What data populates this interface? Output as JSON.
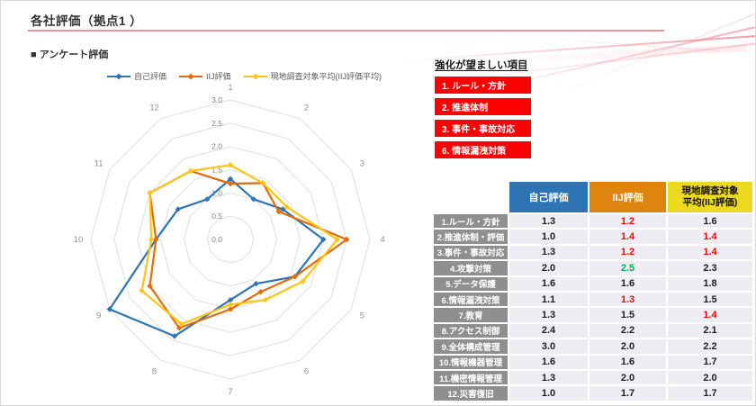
{
  "page": {
    "title": "各社評価（拠点1 ）",
    "section_label": "■ アンケート評価"
  },
  "palette": {
    "title-underline-pink": "#F0919E",
    "header-blue": "#2E74B5",
    "header-orange": "#DD850F",
    "header-yellow": "#EDD91F",
    "row-label-gray": "#8F8F8F",
    "cell-bg": "#EDEDF3",
    "value-red": "#FF0000",
    "value-green": "#00B050",
    "highlight-red": "#FE0000",
    "grid-gray": "#DEDEDE",
    "tick-gray": "#7F7F7F",
    "axis-label-gray": "#909090",
    "text-dark": "#333333"
  },
  "highlight": {
    "title": "強化が望ましい項目",
    "items": [
      "1. ルール・方針",
      "2. 推進体制",
      "3. 事件・事故対応",
      "6. 情報漏洩対策"
    ]
  },
  "table": {
    "columns": [
      "自己評価",
      "IIJ評価",
      "現地調査対象\n平均(IIJ評価)"
    ],
    "rows": [
      {
        "label": "1.ルール・方針",
        "values": [
          {
            "text": "1.3"
          },
          {
            "text": "1.2",
            "emphasis": "red"
          },
          {
            "text": "1.6"
          }
        ]
      },
      {
        "label": "2.推進体制・評価",
        "values": [
          {
            "text": "1.0"
          },
          {
            "text": "1.4",
            "emphasis": "red"
          },
          {
            "text": "1.4",
            "emphasis": "red"
          }
        ]
      },
      {
        "label": "3.事件・事故対応",
        "values": [
          {
            "text": "1.3"
          },
          {
            "text": "1.2",
            "emphasis": "red"
          },
          {
            "text": "1.4",
            "emphasis": "red"
          }
        ]
      },
      {
        "label": "4.攻撃対策",
        "values": [
          {
            "text": "2.0"
          },
          {
            "text": "2.5",
            "emphasis": "green"
          },
          {
            "text": "2.3"
          }
        ]
      },
      {
        "label": "5.データ保護",
        "values": [
          {
            "text": "1.6"
          },
          {
            "text": "1.6"
          },
          {
            "text": "1.8"
          }
        ]
      },
      {
        "label": "6.情報漏洩対策",
        "values": [
          {
            "text": "1.1"
          },
          {
            "text": "1.3",
            "emphasis": "red"
          },
          {
            "text": "1.5"
          }
        ]
      },
      {
        "label": "7.教育",
        "values": [
          {
            "text": "1.3"
          },
          {
            "text": "1.5"
          },
          {
            "text": "1.4",
            "emphasis": "red"
          }
        ]
      },
      {
        "label": "8.アクセス制御",
        "values": [
          {
            "text": "2.4"
          },
          {
            "text": "2.2"
          },
          {
            "text": "2.1"
          }
        ]
      },
      {
        "label": "9.全体構成管理",
        "values": [
          {
            "text": "3.0"
          },
          {
            "text": "2.0"
          },
          {
            "text": "2.2"
          }
        ]
      },
      {
        "label": "10.情報機器管理",
        "values": [
          {
            "text": "1.6"
          },
          {
            "text": "1.6"
          },
          {
            "text": "1.7"
          }
        ]
      },
      {
        "label": "11.機密情報管理",
        "values": [
          {
            "text": "1.3"
          },
          {
            "text": "2.0"
          },
          {
            "text": "2.0"
          }
        ]
      },
      {
        "label": "12.災害復旧",
        "values": [
          {
            "text": "1.0"
          },
          {
            "text": "1.7"
          },
          {
            "text": "1.7"
          }
        ]
      }
    ]
  },
  "chart_data": {
    "type": "radar",
    "title": "",
    "categories": [
      "1",
      "2",
      "3",
      "4",
      "5",
      "6",
      "7",
      "8",
      "9",
      "10",
      "11",
      "12"
    ],
    "rmin": 0.0,
    "rmax": 3.0,
    "tick_step": 0.5,
    "tick_labels": [
      "0.0",
      "0.5",
      "1.0",
      "1.5",
      "2.0",
      "2.5",
      "3.0"
    ],
    "grid": "concentric-polygon-rings-no-spokes",
    "legend_position": "top",
    "series": [
      {
        "name": "自己評価",
        "color": "#2E75B6",
        "values": [
          1.3,
          1.0,
          1.3,
          2.0,
          1.6,
          1.1,
          1.3,
          2.4,
          3.0,
          1.6,
          1.3,
          1.0
        ]
      },
      {
        "name": "IIJ評価",
        "color": "#E26B0A",
        "values": [
          1.2,
          1.4,
          1.2,
          2.5,
          1.6,
          1.3,
          1.5,
          2.2,
          2.0,
          1.6,
          2.0,
          1.7
        ]
      },
      {
        "name": "現地調査対象平均(IIJ評価平均)",
        "color": "#FFC417",
        "values": [
          1.6,
          1.4,
          1.4,
          2.3,
          1.8,
          1.5,
          1.4,
          2.1,
          2.2,
          1.7,
          2.0,
          1.7
        ]
      }
    ]
  }
}
